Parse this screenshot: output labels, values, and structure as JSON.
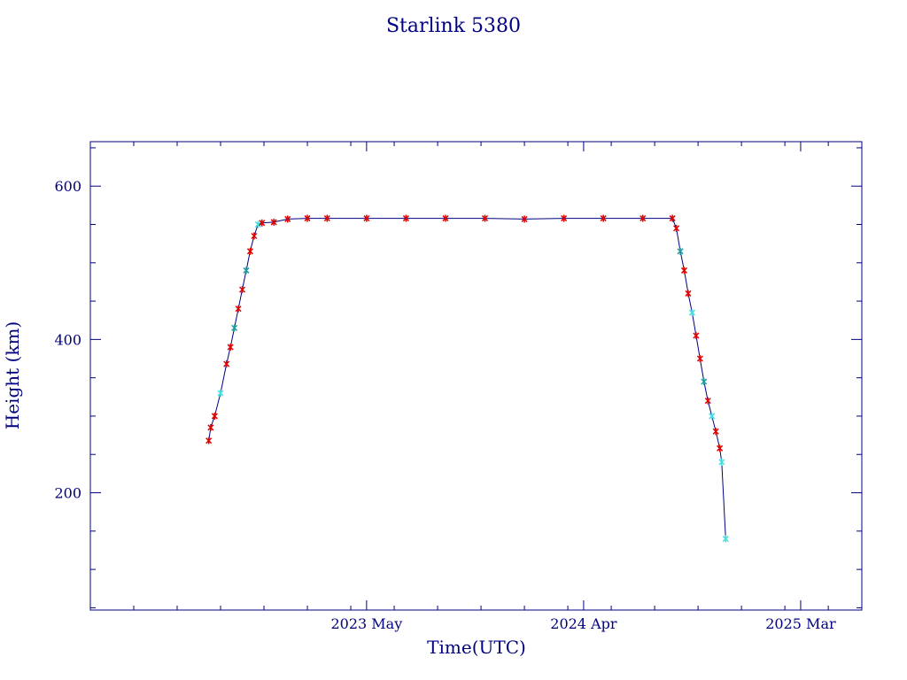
{
  "chart_data": {
    "type": "scatter",
    "title": "Starlink 5380",
    "xlabel": "Time(UTC)",
    "ylabel": "Height (km)",
    "x_axis": {
      "unit": "months since 2022-03",
      "range": [
        0,
        39.1
      ],
      "major_ticks": [
        {
          "label": "2023 May",
          "value": 14
        },
        {
          "label": "2024 Apr",
          "value": 25
        },
        {
          "label": "2025 Mar",
          "value": 36
        }
      ],
      "minor_tick_step": 2.2
    },
    "y_axis": {
      "range": [
        47,
        658
      ],
      "major_ticks": [
        200,
        400,
        600
      ],
      "minor_tick_step": 50
    },
    "grid": false,
    "colors": {
      "frame": "#000080",
      "text": "#000080",
      "line": "#000080",
      "marker_primary": "#e00000",
      "marker_secondary": "#1e9aa0",
      "marker_highlight": "#40e0e0"
    },
    "series": [
      {
        "name": "",
        "x": [
          6.0,
          6.1,
          6.3,
          6.6,
          6.9,
          7.1,
          7.3,
          7.5,
          7.7,
          7.9,
          8.1,
          8.3,
          8.5,
          8.7,
          9.3,
          10.0,
          11.0,
          12.0,
          14.0,
          16.0,
          18.0,
          20.0,
          22.0,
          24.0,
          26.0,
          28.0,
          29.5,
          29.7,
          29.9,
          30.1,
          30.3,
          30.5,
          30.7,
          30.9,
          31.1,
          31.3,
          31.5,
          31.7,
          31.9,
          32.0,
          32.2
        ],
        "y": [
          268,
          285,
          300,
          330,
          368,
          390,
          415,
          440,
          465,
          490,
          515,
          535,
          550,
          552,
          553,
          557,
          558,
          558,
          558,
          558,
          558,
          558,
          557,
          558,
          558,
          558,
          558,
          545,
          515,
          490,
          460,
          435,
          405,
          375,
          345,
          320,
          300,
          280,
          258,
          240,
          140
        ],
        "marker_colors": [
          "primary",
          "primary",
          "primary",
          "highlight",
          "primary",
          "primary",
          "secondary",
          "primary",
          "primary",
          "secondary",
          "primary",
          "primary",
          "highlight",
          "primary",
          "primary",
          "primary",
          "primary",
          "primary",
          "primary",
          "primary",
          "primary",
          "primary",
          "primary",
          "primary",
          "primary",
          "primary",
          "primary",
          "primary",
          "secondary",
          "primary",
          "primary",
          "highlight",
          "primary",
          "primary",
          "secondary",
          "primary",
          "highlight",
          "primary",
          "primary",
          "highlight",
          "highlight"
        ]
      }
    ]
  }
}
